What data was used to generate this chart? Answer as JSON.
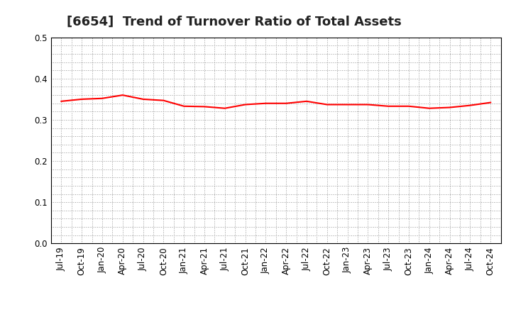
{
  "title": "[6654]  Trend of Turnover Ratio of Total Assets",
  "x_labels": [
    "Jul-19",
    "Oct-19",
    "Jan-20",
    "Apr-20",
    "Jul-20",
    "Oct-20",
    "Jan-21",
    "Apr-21",
    "Jul-21",
    "Oct-21",
    "Jan-22",
    "Apr-22",
    "Jul-22",
    "Oct-22",
    "Jan-23",
    "Apr-23",
    "Jul-23",
    "Oct-23",
    "Jan-24",
    "Apr-24",
    "Jul-24",
    "Oct-24"
  ],
  "values": [
    0.345,
    0.35,
    0.352,
    0.36,
    0.35,
    0.347,
    0.333,
    0.332,
    0.328,
    0.337,
    0.34,
    0.34,
    0.345,
    0.337,
    0.337,
    0.337,
    0.333,
    0.333,
    0.328,
    0.33,
    0.335,
    0.342
  ],
  "line_color": "#FF0000",
  "line_width": 1.5,
  "ylim": [
    0.0,
    0.5
  ],
  "yticks": [
    0.0,
    0.1,
    0.2,
    0.3,
    0.4,
    0.5
  ],
  "background_color": "#FFFFFF",
  "grid_color": "#999999",
  "title_fontsize": 13,
  "tick_fontsize": 8.5
}
